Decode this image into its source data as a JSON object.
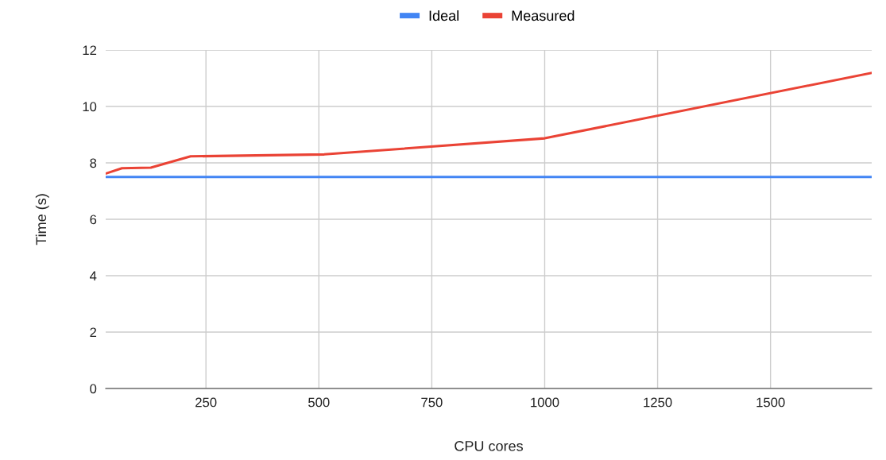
{
  "chart_data": {
    "type": "line",
    "xlabel": "CPU cores",
    "ylabel": "Time (s)",
    "series": [
      {
        "name": "Ideal",
        "color": "#4285f4",
        "x": [
          28,
          1724
        ],
        "values": [
          7.5,
          7.5
        ]
      },
      {
        "name": "Measured",
        "color": "#ea4335",
        "x": [
          28,
          64,
          128,
          216,
          512,
          1000,
          1724
        ],
        "values": [
          7.62,
          7.81,
          7.83,
          8.23,
          8.3,
          8.87,
          11.19
        ]
      }
    ],
    "xlim": [
      28,
      1724
    ],
    "xticks": [
      250,
      500,
      750,
      1000,
      1250,
      1500
    ],
    "ylim": [
      0,
      12
    ],
    "yticks": [
      0,
      2,
      4,
      6,
      8,
      10,
      12
    ],
    "grid": true,
    "legend": "top",
    "marker": "none",
    "line_style": "solid"
  }
}
